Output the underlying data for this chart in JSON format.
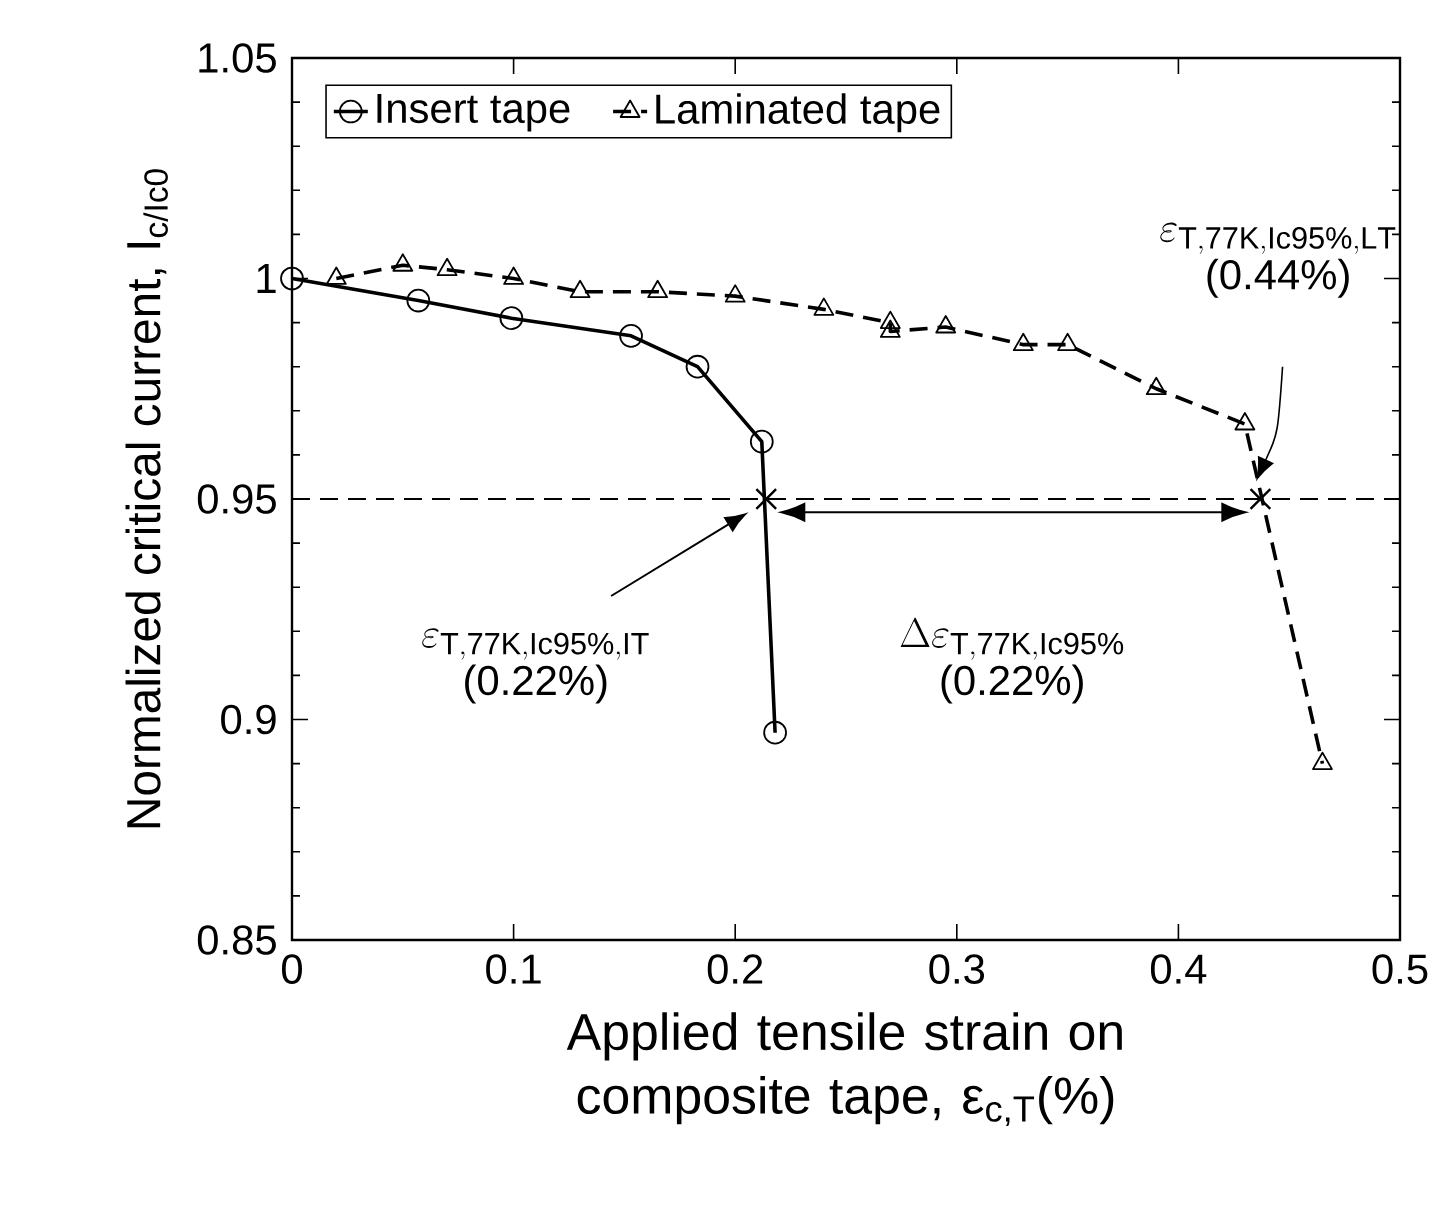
{
  "chart_data": {
    "type": "line",
    "xlabel": "Applied tensile strain on composite tape, ε$_{c,T}$(%)",
    "ylabel": "Normalized critical current, I$_{c/Ic0}$",
    "xlim": [
      0,
      0.5
    ],
    "ylim": [
      0.85,
      1.05
    ],
    "xticks": [
      0,
      0.1,
      0.2,
      0.3,
      0.4,
      0.5
    ],
    "yticks": [
      0.85,
      0.9,
      0.95,
      1,
      1.05
    ],
    "grid": false,
    "legend": "top left",
    "series": [
      {
        "name": "Insert tape",
        "color": "#000000",
        "marker": "circle",
        "line_style": "solid",
        "x": [
          0,
          0.057,
          0.099,
          0.153,
          0.183,
          0.212,
          0.218
        ],
        "values": [
          1.0,
          0.995,
          0.991,
          0.987,
          0.98,
          0.963,
          0.897
        ]
      },
      {
        "name": "Laminated tape",
        "color": "#000000",
        "marker": "triangle",
        "line_style": "dashed",
        "x": [
          0.02,
          0.05,
          0.07,
          0.1,
          0.13,
          0.165,
          0.2,
          0.24,
          0.27,
          0.27,
          0.295,
          0.33,
          0.35,
          0.39,
          0.43,
          0.465
        ],
        "values": [
          1.0,
          1.003,
          1.002,
          1.0,
          0.997,
          0.997,
          0.996,
          0.993,
          0.99,
          0.988,
          0.989,
          0.985,
          0.985,
          0.975,
          0.967,
          0.89
        ]
      },
      {
        "type": "scatter",
        "color": "#000000",
        "marker": "cross",
        "x": [
          0.214,
          0.437
        ],
        "values": [
          0.95,
          0.95
        ]
      }
    ],
    "ref_lines": [
      {
        "axis": "y",
        "value": 0.95,
        "line_style": "dashed",
        "color": "#000000"
      }
    ],
    "annotations": [
      "\\varepsilon_{\\mathrm{T,77K,Ic95\\%,IT}}",
      "(0.22%)",
      "\\Delta\\varepsilon_{\\mathrm{T,77K,Ic95\\%}}",
      "(0.22%)",
      "\\varepsilon_{\\mathrm{T,77K,Ic95\\%,LT}}",
      "(0.44%)"
    ]
  }
}
